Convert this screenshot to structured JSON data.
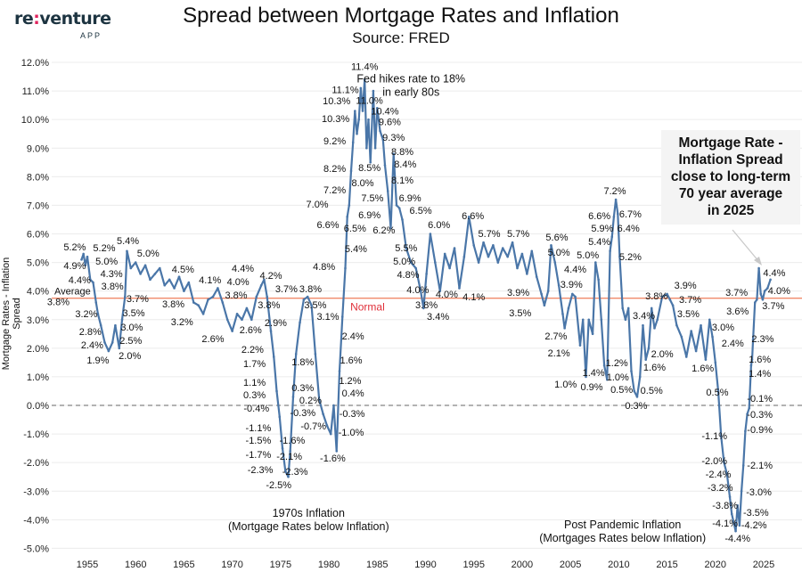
{
  "logo": {
    "text": "re:venture",
    "sub": "APP"
  },
  "chart_data": {
    "type": "line",
    "title": "Spread between Mortgage Rates and Inflation",
    "subtitle": "Source: FRED",
    "ylabel": "Mortgage Rates - Inflation Spread",
    "xlabel": "",
    "xlim": [
      1950.7,
      2028.2
    ],
    "ylim": [
      -5.0,
      12.0
    ],
    "grid": true,
    "line_color": "#4a76a8",
    "average_line": {
      "value": 3.75,
      "color": "#f08a6a",
      "label": "Average",
      "label2": "Normal",
      "label2_color": "#e0303a"
    },
    "zero_line": {
      "value": 0,
      "style": "dashed",
      "color": "#999999"
    },
    "y_ticks": [
      "-5.0%",
      "-4.0%",
      "-3.0%",
      "-2.0%",
      "-1.0%",
      "0.0%",
      "1.0%",
      "2.0%",
      "3.0%",
      "4.0%",
      "5.0%",
      "6.0%",
      "7.0%",
      "8.0%",
      "9.0%",
      "10.0%",
      "11.0%",
      "12.0%"
    ],
    "y_tick_values": [
      -5,
      -4,
      -3,
      -2,
      -1,
      0,
      1,
      2,
      3,
      4,
      5,
      6,
      7,
      8,
      9,
      10,
      11,
      12
    ],
    "x_ticks": [
      "1955",
      "1960",
      "1965",
      "1970",
      "1975",
      "1980",
      "1985",
      "1990",
      "1995",
      "2000",
      "2005",
      "2010",
      "2015",
      "2020",
      "2025"
    ],
    "x": [
      1954.4,
      1954.6,
      1954.8,
      1955.0,
      1955.3,
      1955.6,
      1955.9,
      1956.1,
      1956.4,
      1956.8,
      1957.2,
      1957.6,
      1957.9,
      1958.3,
      1958.6,
      1958.9,
      1959.1,
      1959.5,
      1960,
      1960.5,
      1961,
      1961.5,
      1962,
      1962.5,
      1963,
      1963.5,
      1964,
      1964.5,
      1965,
      1965.5,
      1966,
      1966.5,
      1967,
      1967.5,
      1968,
      1968.5,
      1969,
      1969.5,
      1970,
      1970.5,
      1971,
      1971.5,
      1972,
      1972.5,
      1973,
      1973.3,
      1973.6,
      1974,
      1974.3,
      1974.6,
      1974.9,
      1975.2,
      1975.5,
      1975.8,
      1976.0,
      1976.3,
      1976.6,
      1977,
      1977.4,
      1977.8,
      1978.2,
      1978.6,
      1979,
      1979.4,
      1979.8,
      1980.2,
      1980.5,
      1980.8,
      1981.1,
      1981.4,
      1981.7,
      1981.9,
      1982.1,
      1982.3,
      1982.5,
      1982.7,
      1982.9,
      1983.1,
      1983.3,
      1983.5,
      1983.7,
      1983.9,
      1984.1,
      1984.3,
      1984.6,
      1984.8,
      1985.0,
      1985.3,
      1985.6,
      1985.8,
      1986.1,
      1986.4,
      1986.7,
      1987,
      1987.3,
      1987.6,
      1988,
      1988.5,
      1989,
      1989.5,
      1989.8,
      1990.1,
      1990.5,
      1991,
      1991.5,
      1992,
      1992.5,
      1993,
      1993.5,
      1994,
      1994.5,
      1995,
      1995.5,
      1996,
      1996.5,
      1997,
      1997.5,
      1998,
      1998.5,
      1999,
      1999.5,
      2000,
      2000.5,
      2001,
      2001.5,
      2002,
      2002.3,
      2002.7,
      2003,
      2003.4,
      2003.8,
      2004.2,
      2004.4,
      2004.8,
      2005.2,
      2005.5,
      2006,
      2006.3,
      2006.6,
      2006.9,
      2007.3,
      2007.6,
      2007.9,
      2008.2,
      2008.5,
      2008.8,
      2009.1,
      2009.3,
      2009.5,
      2009.7,
      2009.9,
      2010.1,
      2010.4,
      2010.7,
      2011,
      2011.3,
      2011.6,
      2011.9,
      2012.2,
      2012.5,
      2012.8,
      2013.1,
      2013.4,
      2013.7,
      2014,
      2014.5,
      2015,
      2015.3,
      2015.6,
      2016,
      2016.5,
      2017,
      2017.5,
      2018,
      2018.5,
      2019,
      2019.4,
      2019.7,
      2020,
      2020.3,
      2020.6,
      2020.9,
      2021.2,
      2021.5,
      2021.7,
      2021.9,
      2022.1,
      2022.3,
      2022.5,
      2022.7,
      2022.9,
      2023.1,
      2023.3,
      2023.5,
      2023.7,
      2023.8,
      2023.9,
      2024.1,
      2024.3,
      2024.5,
      2024.7,
      2024.9,
      2025.1,
      2025.4,
      2025.7
    ],
    "y": [
      5.1,
      5.3,
      4.9,
      5.2,
      4.4,
      4.3,
      3.6,
      3.2,
      2.8,
      2.2,
      1.9,
      2.2,
      2.8,
      2.0,
      3.0,
      3.8,
      5.4,
      4.8,
      5.0,
      4.6,
      4.9,
      4.4,
      4.6,
      4.8,
      4.2,
      4.4,
      4.1,
      4.5,
      4.0,
      4.3,
      3.6,
      3.5,
      3.2,
      3.7,
      3.8,
      4.1,
      3.6,
      3.0,
      2.6,
      3.2,
      3.0,
      3.4,
      3.0,
      3.8,
      4.2,
      4.4,
      3.8,
      2.6,
      1.7,
      0.5,
      -0.4,
      -1.5,
      -2.3,
      -2.5,
      -1.6,
      0.3,
      1.8,
      2.9,
      3.7,
      3.8,
      3.5,
      1.8,
      0.2,
      -0.3,
      -0.7,
      -1.0,
      0.0,
      -1.6,
      1.2,
      3.1,
      4.8,
      6.6,
      7.0,
      8.2,
      9.2,
      10.3,
      9.5,
      10.0,
      11.1,
      10.3,
      11.4,
      9.0,
      10.0,
      8.5,
      11.0,
      9.0,
      10.4,
      9.6,
      9.3,
      8.4,
      7.5,
      6.2,
      8.8,
      7.0,
      6.9,
      6.5,
      5.5,
      5.0,
      4.8,
      4.0,
      3.4,
      4.6,
      6.0,
      5.0,
      4.0,
      5.3,
      4.8,
      5.5,
      4.1,
      5.2,
      6.6,
      5.6,
      5.0,
      5.7,
      5.2,
      5.6,
      5.0,
      5.5,
      5.2,
      5.7,
      4.8,
      5.3,
      4.6,
      5.4,
      4.5,
      3.9,
      3.5,
      4.0,
      5.6,
      5.0,
      4.2,
      3.2,
      2.7,
      3.4,
      3.9,
      3.8,
      2.1,
      3.0,
      1.0,
      3.0,
      2.5,
      5.0,
      4.4,
      3.0,
      1.4,
      0.9,
      5.4,
      5.9,
      6.6,
      7.2,
      6.7,
      5.2,
      3.4,
      3.0,
      3.4,
      1.2,
      0.5,
      0.3,
      1.0,
      2.8,
      1.6,
      2.0,
      3.4,
      2.7,
      3.0,
      3.8,
      3.9,
      3.7,
      3.5,
      2.8,
      2.4,
      1.7,
      2.6,
      1.9,
      2.8,
      1.6,
      3.0,
      2.4,
      1.5,
      0.5,
      -1.1,
      -2.0,
      -2.4,
      -3.2,
      -3.8,
      -4.1,
      -4.4,
      -3.5,
      -4.2,
      -3.0,
      -2.1,
      -0.9,
      -0.3,
      -0.1,
      1.4,
      1.6,
      2.3,
      3.6,
      3.7,
      4.8,
      3.9,
      3.7,
      4.0,
      4.1,
      4.4
    ],
    "data_labels": [
      [
        "5.2%",
        1953.7,
        5.55
      ],
      [
        "5.2%",
        1956.75,
        5.52
      ],
      [
        "4.9%",
        1953.7,
        4.89
      ],
      [
        "5.0%",
        1957.0,
        5.05
      ],
      [
        "4.4%",
        1954.2,
        4.4
      ],
      [
        "4.3%",
        1957.5,
        4.61
      ],
      [
        "3.8%",
        1957.6,
        4.18
      ],
      [
        "3.8%",
        1952.0,
        3.8
      ],
      [
        "3.2%",
        1954.9,
        3.21
      ],
      [
        "2.8%",
        1955.3,
        2.59
      ],
      [
        "2.4%",
        1955.5,
        2.12
      ],
      [
        "1.9%",
        1956.1,
        1.59
      ],
      [
        "5.4%",
        1959.2,
        5.77
      ],
      [
        "5.0%",
        1961.3,
        5.33
      ],
      [
        "3.7%",
        1960.2,
        3.74
      ],
      [
        "3.5%",
        1959.8,
        3.24
      ],
      [
        "3.0%",
        1959.6,
        2.74
      ],
      [
        "2.5%",
        1959.5,
        2.28
      ],
      [
        "2.0%",
        1959.4,
        1.75
      ],
      [
        "4.5%",
        1964.9,
        4.77
      ],
      [
        "3.8%",
        1963.9,
        3.55
      ],
      [
        "3.2%",
        1964.8,
        2.93
      ],
      [
        "4.1%",
        1967.7,
        4.4
      ],
      [
        "2.6%",
        1968.0,
        2.34
      ],
      [
        "3.8%",
        1970.4,
        3.87
      ],
      [
        "4.0%",
        1970.6,
        4.33
      ],
      [
        "4.4%",
        1971.1,
        4.8
      ],
      [
        "4.2%",
        1974.0,
        4.55
      ],
      [
        "3.8%",
        1973.8,
        3.52
      ],
      [
        "2.6%",
        1971.9,
        2.65
      ],
      [
        "2.2%",
        1972.1,
        1.96
      ],
      [
        "1.7%",
        1972.3,
        1.47
      ],
      [
        "1.1%",
        1972.3,
        0.81
      ],
      [
        "0.3%",
        1972.3,
        0.37
      ],
      [
        "-0.4%",
        1972.5,
        -0.09
      ],
      [
        "-1.1%",
        1972.7,
        -0.78
      ],
      [
        "-1.5%",
        1972.7,
        -1.22
      ],
      [
        "-1.7%",
        1972.7,
        -1.71
      ],
      [
        "-2.3%",
        1972.9,
        -2.24
      ],
      [
        "-2.5%",
        1974.8,
        -2.77
      ],
      [
        "-2.3%",
        1976.5,
        -2.31
      ],
      [
        "-2.1%",
        1975.9,
        -1.78
      ],
      [
        "-1.6%",
        1976.2,
        -1.22
      ],
      [
        "-0.3%",
        1977.3,
        -0.25
      ],
      [
        "0.3%",
        1977.3,
        0.62
      ],
      [
        "0.2%",
        1978.1,
        0.19
      ],
      [
        "-0.7%",
        1978.4,
        -0.72
      ],
      [
        "1.8%",
        1977.3,
        1.53
      ],
      [
        "2.9%",
        1974.5,
        2.9
      ],
      [
        "3.7%",
        1975.6,
        4.08
      ],
      [
        "3.8%",
        1978.1,
        4.08
      ],
      [
        "3.5%",
        1978.6,
        3.52
      ],
      [
        "3.1%",
        1979.9,
        3.12
      ],
      [
        "-1.6%",
        1980.4,
        -1.84
      ],
      [
        "4.8%",
        1979.5,
        4.86
      ],
      [
        "2.4%",
        1982.5,
        2.43
      ],
      [
        "1.6%",
        1982.3,
        1.59
      ],
      [
        "1.2%",
        1982.2,
        0.87
      ],
      [
        "0.4%",
        1982.5,
        0.44
      ],
      [
        "-0.3%",
        1982.4,
        -0.28
      ],
      [
        "-1.0%",
        1982.3,
        -0.94
      ],
      [
        "5.4%",
        1982.8,
        5.49
      ],
      [
        "6.6%",
        1979.9,
        6.33
      ],
      [
        "6.5%",
        1982.7,
        6.2
      ],
      [
        "7.0%",
        1978.8,
        7.04
      ],
      [
        "7.2%",
        1980.6,
        7.54
      ],
      [
        "8.2%",
        1980.6,
        8.29
      ],
      [
        "8.0%",
        1983.5,
        7.79
      ],
      [
        "9.2%",
        1980.6,
        9.26
      ],
      [
        "10.3%",
        1980.7,
        10.04
      ],
      [
        "10.3%",
        1980.8,
        10.66
      ],
      [
        "11.1%",
        1981.7,
        11.13
      ],
      [
        "11.4%",
        1983.7,
        11.69
      ],
      [
        "11.0%",
        1984.2,
        11.0
      ],
      [
        "10.4%",
        1985.8,
        10.41
      ],
      [
        "9.6%",
        1986.3,
        9.98
      ],
      [
        "9.3%",
        1986.7,
        9.38
      ],
      [
        "8.8%",
        1987.6,
        8.88
      ],
      [
        "8.4%",
        1987.9,
        8.45
      ],
      [
        "8.1%",
        1987.6,
        7.89
      ],
      [
        "8.5%",
        1984.2,
        8.32
      ],
      [
        "7.5%",
        1984.5,
        7.26
      ],
      [
        "6.9%",
        1984.2,
        6.67
      ],
      [
        "6.2%",
        1985.7,
        6.14
      ],
      [
        "6.9%",
        1988.4,
        7.26
      ],
      [
        "6.5%",
        1989.5,
        6.83
      ],
      [
        "6.0%",
        1991.4,
        6.33
      ],
      [
        "5.5%",
        1988.0,
        5.52
      ],
      [
        "5.0%",
        1987.8,
        5.05
      ],
      [
        "4.8%",
        1988.2,
        4.58
      ],
      [
        "4.0%",
        1989.2,
        4.05
      ],
      [
        "3.8%",
        1990.1,
        3.52
      ],
      [
        "4.0%",
        1992.2,
        3.71
      ],
      [
        "3.4%",
        1991.3,
        3.12
      ],
      [
        "4.1%",
        1995.0,
        3.8
      ],
      [
        "6.6%",
        1994.9,
        6.64
      ],
      [
        "5.7%",
        1996.6,
        6.02
      ],
      [
        "5.7%",
        1999.6,
        6.02
      ],
      [
        "3.9%",
        1999.6,
        3.96
      ],
      [
        "3.5%",
        1999.8,
        3.24
      ],
      [
        "5.6%",
        2003.6,
        5.89
      ],
      [
        "5.0%",
        2003.8,
        5.36
      ],
      [
        "4.4%",
        2005.5,
        4.77
      ],
      [
        "3.9%",
        2005.1,
        4.24
      ],
      [
        "2.7%",
        2003.5,
        2.43
      ],
      [
        "2.1%",
        2003.8,
        1.84
      ],
      [
        "5.0%",
        2006.8,
        5.27
      ],
      [
        "5.4%",
        2008.0,
        5.74
      ],
      [
        "5.9%",
        2008.3,
        6.2
      ],
      [
        "6.6%",
        2008.0,
        6.64
      ],
      [
        "7.2%",
        2009.6,
        7.51
      ],
      [
        "6.7%",
        2011.2,
        6.7
      ],
      [
        "6.4%",
        2011.0,
        6.2
      ],
      [
        "5.2%",
        2011.2,
        5.21
      ],
      [
        "1.0%",
        2004.5,
        0.75
      ],
      [
        "1.4%",
        2007.4,
        1.15
      ],
      [
        "0.9%",
        2007.2,
        0.65
      ],
      [
        "1.2%",
        2009.8,
        1.5
      ],
      [
        "1.0%",
        2009.9,
        1.0
      ],
      [
        "0.5%",
        2010.3,
        0.56
      ],
      [
        "0.5%",
        2013.4,
        0.53
      ],
      [
        "0.3%",
        2011.8,
        0.0
      ],
      [
        "3.4%",
        2012.6,
        3.15
      ],
      [
        "2.0%",
        2014.5,
        1.81
      ],
      [
        "1.6%",
        2013.7,
        1.34
      ],
      [
        "3.8%",
        2013.9,
        3.83
      ],
      [
        "3.9%",
        2016.9,
        4.21
      ],
      [
        "3.7%",
        2017.4,
        3.71
      ],
      [
        "3.5%",
        2017.2,
        3.21
      ],
      [
        "1.6%",
        2018.7,
        1.31
      ],
      [
        "3.0%",
        2020.8,
        2.74
      ],
      [
        "2.4%",
        2021.8,
        2.18
      ],
      [
        "3.7%",
        2022.2,
        3.96
      ],
      [
        "3.6%",
        2022.3,
        3.3
      ],
      [
        "0.5%",
        2020.2,
        0.47
      ],
      [
        "-1.1%",
        2019.9,
        -1.06
      ],
      [
        "-2.0%",
        2019.9,
        -1.93
      ],
      [
        "-2.4%",
        2020.3,
        -2.4
      ],
      [
        "-3.2%",
        2020.5,
        -2.87
      ],
      [
        "-3.8%",
        2021.0,
        -3.49
      ],
      [
        "-4.1%",
        2021.0,
        -4.11
      ],
      [
        "-4.4%",
        2022.3,
        -4.64
      ],
      [
        "-4.2%",
        2024.0,
        -4.18
      ],
      [
        "-3.5%",
        2024.2,
        -3.74
      ],
      [
        "-3.0%",
        2024.5,
        -3.02
      ],
      [
        "-2.1%",
        2024.6,
        -2.09
      ],
      [
        "-0.9%",
        2024.6,
        -0.84
      ],
      [
        "-0.3%",
        2024.6,
        -0.31
      ],
      [
        "-0.1%",
        2024.6,
        0.25
      ],
      [
        "1.4%",
        2024.6,
        1.12
      ],
      [
        "1.6%",
        2024.6,
        1.62
      ],
      [
        "2.3%",
        2024.9,
        2.34
      ],
      [
        "4.4%",
        2026.1,
        4.64
      ],
      [
        "4.0%",
        2026.6,
        4.02
      ],
      [
        "3.7%",
        2026.0,
        3.49
      ]
    ],
    "annotations": [
      {
        "lines": [
          "Fed hikes rate to 18%",
          "in early 80s"
        ],
        "x": 1988.5,
        "y": 11.3
      },
      {
        "lines": [
          "1970s Inflation",
          "(Mortgage Rates below Inflation)"
        ],
        "x": 1977.9,
        "y": -3.9
      },
      {
        "lines": [
          "Post Pandemic Inflation",
          "(Mortgages Rates below Inflation)"
        ],
        "x": 2010.4,
        "y": -4.3
      }
    ],
    "callout": "Mortgage Rate -\nInflation Spread\nclose to long-term\n70 year average\nin 2025"
  }
}
